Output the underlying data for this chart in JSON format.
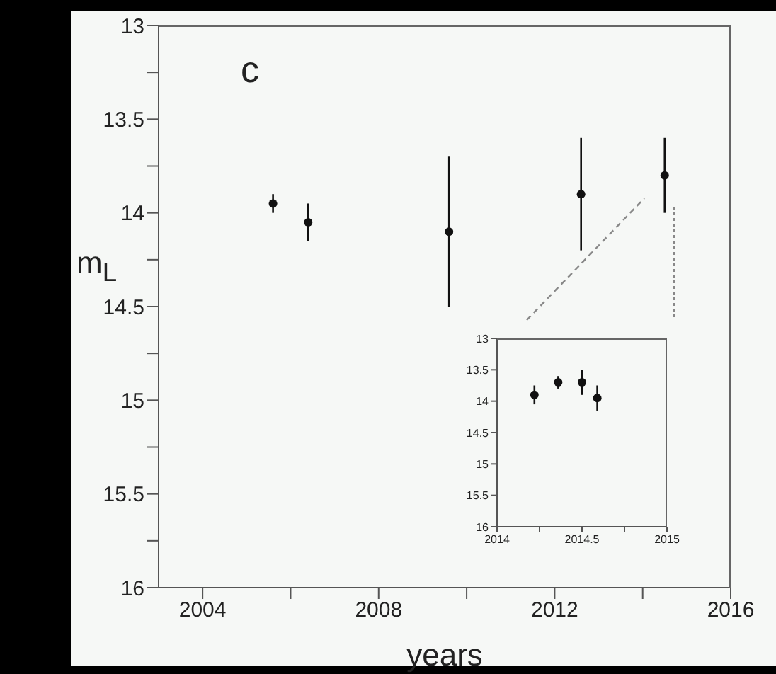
{
  "chart_data": [
    {
      "type": "scatter",
      "xlabel": "years",
      "ylabel": "m$_{L}$",
      "annotations": [
        "c"
      ],
      "x": [
        2005.6,
        2006.4,
        2009.6,
        2012.6,
        2014.5
      ],
      "series": [
        {
          "color": "#111111",
          "values": [
            13.95,
            14.05,
            14.1,
            13.9,
            13.8
          ],
          "errors": [
            0.05,
            0.1,
            0.4,
            0.3,
            0.2
          ]
        }
      ],
      "xlim": [
        2003,
        2016
      ],
      "xticks": [
        2004,
        {
          "value": 2006,
          "label": null
        },
        2008,
        {
          "value": 2010,
          "label": null
        },
        2012,
        {
          "value": 2014,
          "label": null
        },
        2016
      ],
      "ylim": [
        16,
        13
      ],
      "yticks": [
        13,
        {
          "value": 13.25,
          "label": null
        },
        13.5,
        {
          "value": 13.75,
          "label": null
        },
        14,
        {
          "value": 14.25,
          "label": null
        },
        14.5,
        {
          "value": 14.75,
          "label": null
        },
        15,
        {
          "value": 15.25,
          "label": null
        },
        15.5,
        {
          "value": 15.75,
          "label": null
        },
        16
      ],
      "marker": "circle",
      "grid": false,
      "legend": false
    },
    {
      "type": "scatter",
      "x": [
        2014.22,
        2014.36,
        2014.5,
        2014.59
      ],
      "series": [
        {
          "color": "#111111",
          "values": [
            13.9,
            13.7,
            13.7,
            13.95
          ],
          "errors": [
            0.15,
            0.1,
            0.2,
            0.2
          ]
        }
      ],
      "xlim": [
        2014,
        2015
      ],
      "xticks": [
        2014,
        {
          "value": 2014.25,
          "label": null
        },
        2014.5,
        {
          "value": 2014.75,
          "label": null
        },
        2015
      ],
      "ylim": [
        16,
        13
      ],
      "yticks": [
        13,
        13.5,
        14,
        14.5,
        15,
        15.5,
        16
      ],
      "marker": "circle",
      "grid": false,
      "legend": false
    }
  ]
}
